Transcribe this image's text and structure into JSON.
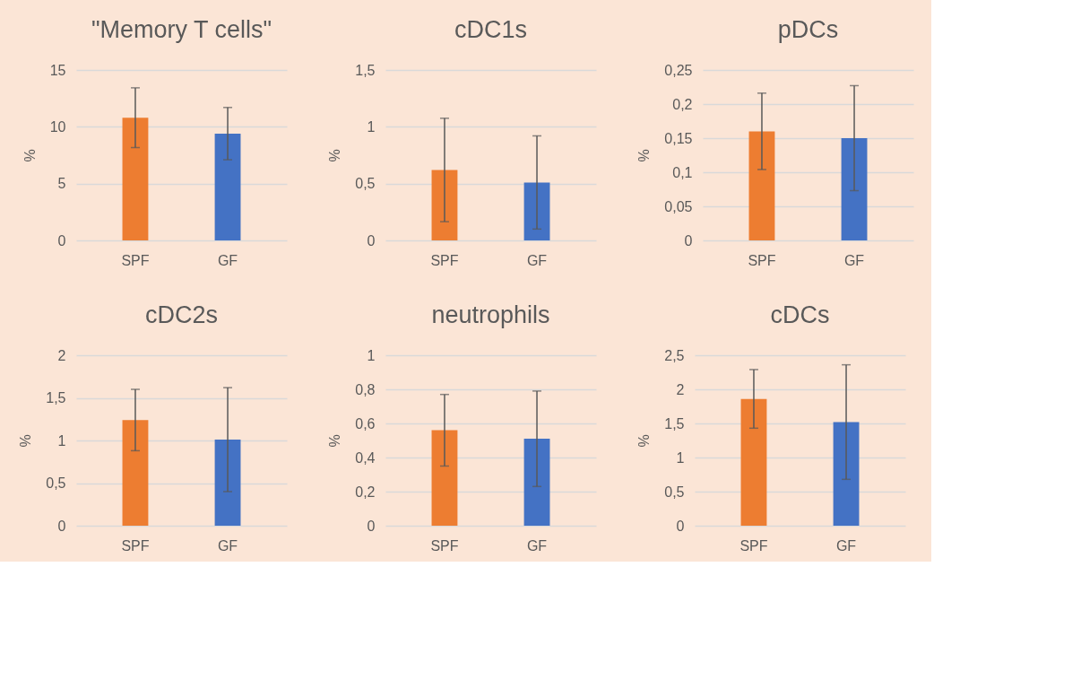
{
  "chart_data": [
    {
      "type": "bar",
      "title": "\"Memory T cells\"",
      "ylabel": "%",
      "categories": [
        "SPF",
        "GF"
      ],
      "values": [
        10.8,
        9.4
      ],
      "colors": [
        "#ed7d31",
        "#4472c4"
      ],
      "errors": [
        2.63,
        2.3
      ],
      "ylim": [
        0,
        15
      ],
      "yticks": [
        0,
        5,
        10,
        15
      ],
      "grid": "y"
    },
    {
      "type": "bar",
      "title": "cDC1s",
      "ylabel": "%",
      "categories": [
        "SPF",
        "GF"
      ],
      "values": [
        0.62,
        0.51
      ],
      "colors": [
        "#ed7d31",
        "#4472c4"
      ],
      "errors": [
        0.455,
        0.41
      ],
      "ylim": [
        0,
        1.5
      ],
      "yticks": [
        0,
        {
          "value": 0.5,
          "label": "0,5"
        },
        1,
        {
          "value": 1.5,
          "label": "1,5"
        }
      ],
      "grid": "y"
    },
    {
      "type": "bar",
      "title": "pDCs",
      "ylabel": "%",
      "categories": [
        "SPF",
        "GF"
      ],
      "values": [
        0.16,
        0.15
      ],
      "colors": [
        "#ed7d31",
        "#4472c4"
      ],
      "errors": [
        0.056,
        0.077
      ],
      "ylim": [
        0,
        0.25
      ],
      "yticks": [
        0,
        {
          "value": 0.05,
          "label": "0,05"
        },
        {
          "value": 0.1,
          "label": "0,1"
        },
        {
          "value": 0.15,
          "label": "0,15"
        },
        {
          "value": 0.2,
          "label": "0,2"
        },
        {
          "value": 0.25,
          "label": "0,25"
        }
      ],
      "grid": "y"
    },
    {
      "type": "bar",
      "title": "cDC2s",
      "ylabel": "%",
      "categories": [
        "SPF",
        "GF"
      ],
      "values": [
        1.24,
        1.01
      ],
      "colors": [
        "#ed7d31",
        "#4472c4"
      ],
      "errors": [
        0.36,
        0.61
      ],
      "ylim": [
        0,
        2
      ],
      "yticks": [
        0,
        {
          "value": 0.5,
          "label": "0,5"
        },
        1,
        {
          "value": 1.5,
          "label": "1,5"
        },
        2
      ],
      "grid": "y"
    },
    {
      "type": "bar",
      "title": "neutrophils",
      "ylabel": "%",
      "categories": [
        "SPF",
        "GF"
      ],
      "values": [
        0.56,
        0.51
      ],
      "colors": [
        "#ed7d31",
        "#4472c4"
      ],
      "errors": [
        0.21,
        0.28
      ],
      "ylim": [
        0,
        1
      ],
      "yticks": [
        0,
        {
          "value": 0.2,
          "label": "0,2"
        },
        {
          "value": 0.4,
          "label": "0,4"
        },
        {
          "value": 0.6,
          "label": "0,6"
        },
        {
          "value": 0.8,
          "label": "0,8"
        },
        1
      ],
      "grid": "y"
    },
    {
      "type": "bar",
      "title": "cDCs",
      "ylabel": "%",
      "categories": [
        "SPF",
        "GF"
      ],
      "values": [
        1.86,
        1.52
      ],
      "colors": [
        "#ed7d31",
        "#4472c4"
      ],
      "errors": [
        0.43,
        0.84
      ],
      "ylim": [
        0,
        2.5
      ],
      "yticks": [
        0,
        {
          "value": 0.5,
          "label": "0,5"
        },
        1,
        {
          "value": 1.5,
          "label": "1,5"
        },
        2,
        {
          "value": 2.5,
          "label": "2,5"
        }
      ],
      "grid": "y"
    }
  ]
}
